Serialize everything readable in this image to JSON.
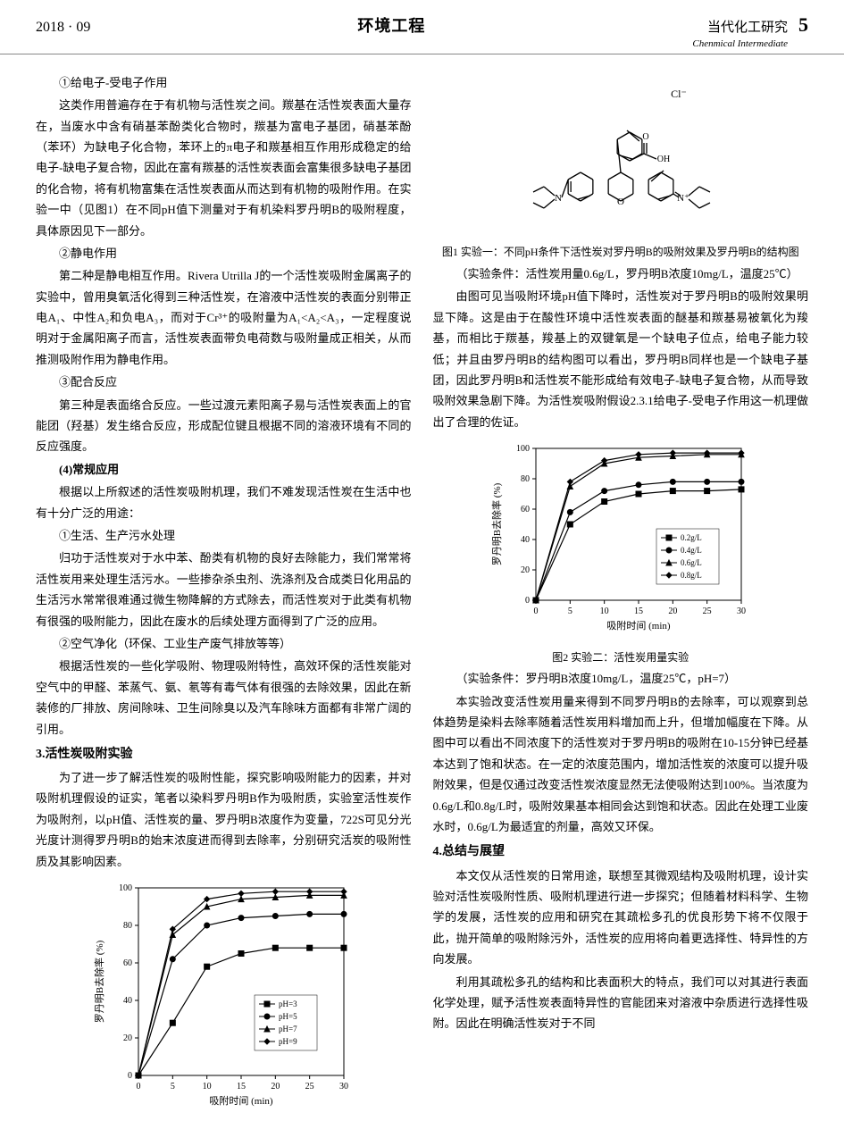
{
  "header": {
    "issue": "2018 · 09",
    "section_title": "环境工程",
    "journal_cn": "当代化工研究",
    "journal_en": "Chenmical Intermediate",
    "page": "5"
  },
  "left": {
    "s1_title": "①给电子-受电子作用",
    "s1_p1": "这类作用普遍存在于有机物与活性炭之间。羰基在活性炭表面大量存在，当废水中含有硝基苯酚类化合物时，羰基为富电子基团，硝基苯酚（苯环）为缺电子化合物，苯环上的π电子和羰基相互作用形成稳定的给电子-缺电子复合物，因此在富有羰基的活性炭表面会富集很多缺电子基团的化合物，将有机物富集在活性炭表面从而达到有机物的吸附作用。在实验一中（见图1）在不同pH值下测量对于有机染料罗丹明B的吸附程度，具体原因见下一部分。",
    "s2_title": "②静电作用",
    "s2_p1": "第二种是静电相互作用。Rivera Utrilla J的一个活性炭吸附金属离子的实验中，曾用臭氧活化得到三种活性炭，在溶液中活性炭的表面分别带正电A₁、中性A₂和负电A₃，而对于Cr³⁺的吸附量为A₁<A₂<A₃，一定程度说明对于金属阳离子而言，活性炭表面带负电荷数与吸附量成正相关，从而推测吸附作用为静电作用。",
    "s3_title": "③配合反应",
    "s3_p1": "第三种是表面络合反应。一些过渡元素阳离子易与活性炭表面上的官能团（羟基）发生络合反应，形成配位键且根据不同的溶液环境有不同的反应强度。",
    "s4_title": "(4)常规应用",
    "s4_p1": "根据以上所叙述的活性炭吸附机理，我们不难发现活性炭在生活中也有十分广泛的用途：",
    "s4a_title": "①生活、生产污水处理",
    "s4a_p1": "归功于活性炭对于水中苯、酚类有机物的良好去除能力，我们常常将活性炭用来处理生活污水。一些掺杂杀虫剂、洗涤剂及合成类日化用品的生活污水常常很难通过微生物降解的方式除去，而活性炭对于此类有机物有很强的吸附能力，因此在废水的后续处理方面得到了广泛的应用。",
    "s4b_title": "②空气净化（环保、工业生产废气排放等等）",
    "s4b_p1": "根据活性炭的一些化学吸附、物理吸附特性，高效环保的活性炭能对空气中的甲醛、苯蒸气、氨、氡等有毒气体有很强的去除效果，因此在新装修的厂排放、房间除味、卫生间除臭以及汽车除味方面都有非常广阔的引用。",
    "h3_1": "3.活性炭吸附实验",
    "s5_p1": "为了进一步了解活性炭的吸附性能，探究影响吸附能力的因素，并对吸附机理假设的证实，笔者以染料罗丹明B作为吸附质，实验室活性炭作为吸附剂，以pH值、活性炭的量、罗丹明B浓度作为变量，722S可见分光光度计测得罗丹明B的始末浓度进而得到去除率，分别研究活炭的吸附性质及其影响因素。"
  },
  "right": {
    "fig1_cap1": "图1 实验一：不同pH条件下活性炭对罗丹明B的吸附效果及罗丹明B的结构图",
    "fig1_cap2": "（实验条件：活性炭用量0.6g/L，罗丹明B浓度10mg/L，温度25℃）",
    "r_p1": "由图可见当吸附环境pH值下降时，活性炭对于罗丹明B的吸附效果明显下降。这是由于在酸性环境中活性炭表面的醚基和羰基易被氧化为羧基，而相比于羰基，羧基上的双键氧是一个缺电子位点，给电子能力较低；并且由罗丹明B的结构图可以看出，罗丹明B同样也是一个缺电子基团，因此罗丹明B和活性炭不能形成给有效电子-缺电子复合物，从而导致吸附效果急剧下降。为活性炭吸附假设2.3.1给电子-受电子作用这一机理做出了合理的佐证。",
    "fig2_cap1": "图2 实验二：活性炭用量实验",
    "fig2_cap2": "（实验条件：罗丹明B浓度10mg/L，温度25℃，pH=7）",
    "r_p2": "本实验改变活性炭用量来得到不同罗丹明B的去除率，可以观察到总体趋势是染料去除率随着活性炭用料增加而上升，但增加幅度在下降。从图中可以看出不同浓度下的活性炭对于罗丹明B的吸附在10-15分钟已经基本达到了饱和状态。在一定的浓度范围内，增加活性炭的浓度可以提升吸附效果，但是仅通过改变活性炭浓度显然无法使吸附达到100%。当浓度为0.6g/L和0.8g/L时，吸附效果基本相同会达到饱和状态。因此在处理工业废水时，0.6g/L为最适宜的剂量，高效又环保。",
    "h3_2": "4.总结与展望",
    "r_p3": "本文仅从活性炭的日常用途，联想至其微观结构及吸附机理，设计实验对活性炭吸附性质、吸附机理进行进一步探究；但随着材料科学、生物学的发展，活性炭的应用和研究在其疏松多孔的优良形势下将不仅限于此，抛开简单的吸附除污外，活性炭的应用将向着更选择性、特异性的方向发展。",
    "r_p4": "利用其疏松多孔的结构和比表面积大的特点，我们可以对其进行表面化学处理，赋予活性炭表面特异性的官能团来对溶液中杂质进行选择性吸附。因此在明确活性炭对于不同"
  },
  "chart1": {
    "type": "line",
    "xlabel": "吸附时间 (min)",
    "ylabel": "罗丹明B去除率 (%)",
    "xlim": [
      0,
      30
    ],
    "ylim": [
      0,
      100
    ],
    "xticks": [
      0,
      5,
      10,
      15,
      20,
      25,
      30
    ],
    "yticks": [
      0,
      20,
      40,
      60,
      80,
      100
    ],
    "series": [
      {
        "label": "pH=3",
        "marker": "square",
        "x": [
          0,
          5,
          10,
          15,
          20,
          25,
          30
        ],
        "y": [
          0,
          28,
          58,
          65,
          68,
          68,
          68
        ]
      },
      {
        "label": "pH=5",
        "marker": "circle",
        "x": [
          0,
          5,
          10,
          15,
          20,
          25,
          30
        ],
        "y": [
          0,
          62,
          80,
          84,
          85,
          86,
          86
        ]
      },
      {
        "label": "pH=7",
        "marker": "triangle",
        "x": [
          0,
          5,
          10,
          15,
          20,
          25,
          30
        ],
        "y": [
          0,
          75,
          90,
          94,
          95,
          96,
          96
        ]
      },
      {
        "label": "pH=9",
        "marker": "diamond",
        "x": [
          0,
          5,
          10,
          15,
          20,
          25,
          30
        ],
        "y": [
          0,
          78,
          94,
          97,
          98,
          98,
          98
        ]
      }
    ],
    "line_color": "#000000",
    "background": "#ffffff",
    "font_size": 10
  },
  "chart2": {
    "type": "line",
    "xlabel": "吸附时间 (min)",
    "ylabel": "罗丹明B去除率 (%)",
    "xlim": [
      0,
      30
    ],
    "ylim": [
      0,
      100
    ],
    "xticks": [
      0,
      5,
      10,
      15,
      20,
      25,
      30
    ],
    "yticks": [
      0,
      20,
      40,
      60,
      80,
      100
    ],
    "series": [
      {
        "label": "0.2g/L",
        "marker": "square",
        "x": [
          0,
          5,
          10,
          15,
          20,
          25,
          30
        ],
        "y": [
          0,
          50,
          65,
          70,
          72,
          72,
          73
        ]
      },
      {
        "label": "0.4g/L",
        "marker": "circle",
        "x": [
          0,
          5,
          10,
          15,
          20,
          25,
          30
        ],
        "y": [
          0,
          58,
          72,
          76,
          78,
          78,
          78
        ]
      },
      {
        "label": "0.6g/L",
        "marker": "triangle",
        "x": [
          0,
          5,
          10,
          15,
          20,
          25,
          30
        ],
        "y": [
          0,
          75,
          90,
          94,
          95,
          96,
          96
        ]
      },
      {
        "label": "0.8g/L",
        "marker": "diamond",
        "x": [
          0,
          5,
          10,
          15,
          20,
          25,
          30
        ],
        "y": [
          0,
          78,
          92,
          96,
          97,
          97,
          97
        ]
      }
    ],
    "line_color": "#000000",
    "background": "#ffffff",
    "font_size": 10
  },
  "structure": {
    "label_cl": "Cl⁻",
    "label_n1": "N",
    "label_n2": "N⁺",
    "label_o": "O",
    "label_oh": "OH",
    "label_dbond_o": "O"
  }
}
